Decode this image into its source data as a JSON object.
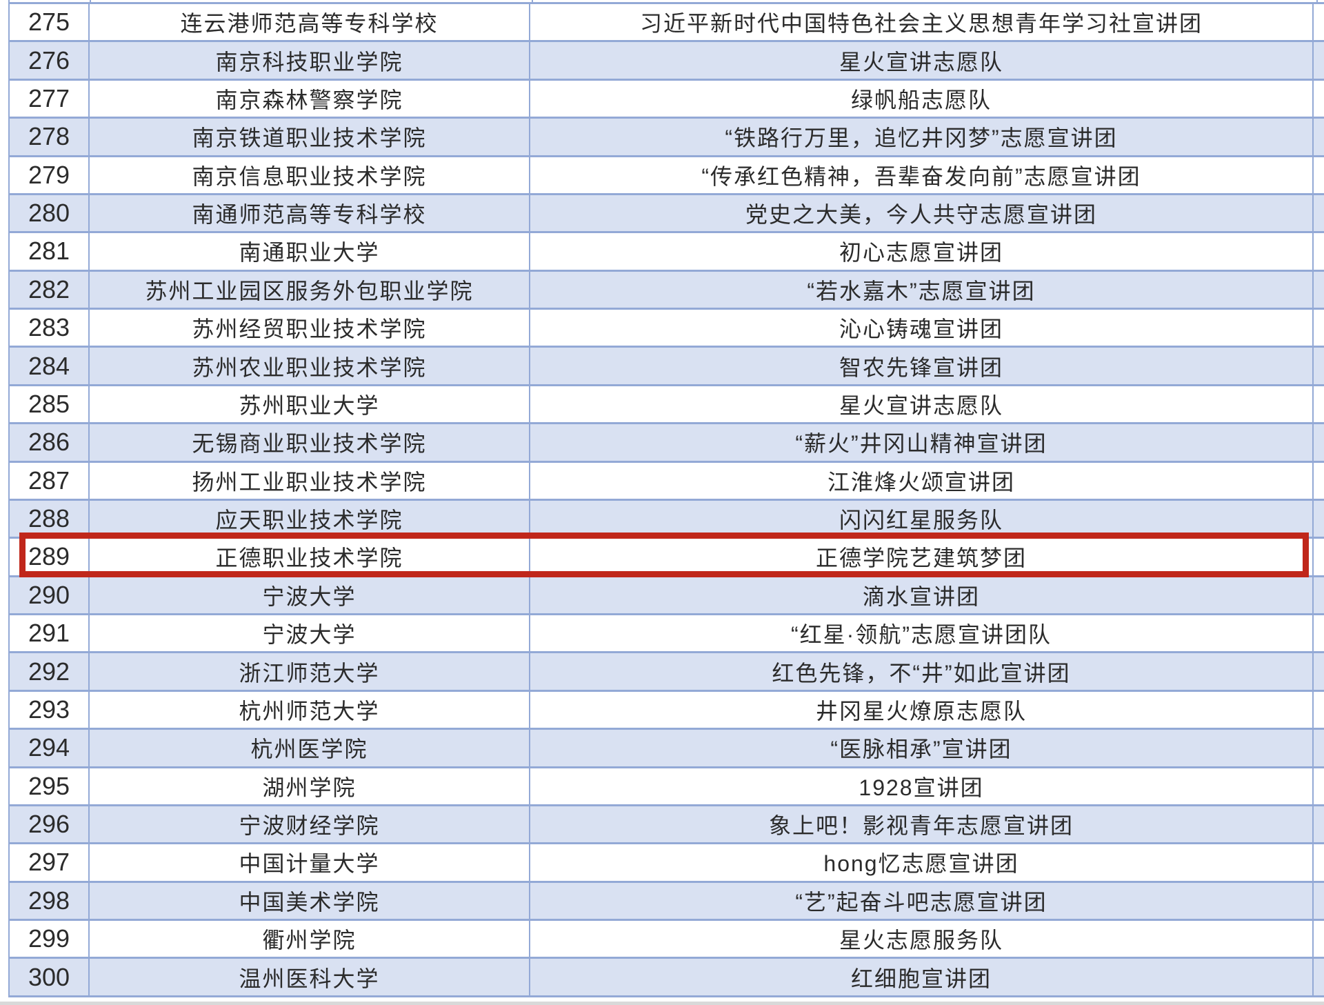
{
  "table": {
    "highlight": {
      "row_no": "289"
    },
    "colors": {
      "row_even_fill": "#d9e1f2",
      "row_odd_fill": "#ffffff",
      "border": "#93a9d6",
      "highlight_border": "#c0271b",
      "text": "#2b2b2b"
    },
    "rows": [
      {
        "no": "275",
        "school": "连云港师范高等专科学校",
        "team": "习近平新时代中国特色社会主义思想青年学习社宣讲团"
      },
      {
        "no": "276",
        "school": "南京科技职业学院",
        "team": "星火宣讲志愿队"
      },
      {
        "no": "277",
        "school": "南京森林警察学院",
        "team": "绿帆船志愿队"
      },
      {
        "no": "278",
        "school": "南京铁道职业技术学院",
        "team": "“铁路行万里，追忆井冈梦”志愿宣讲团"
      },
      {
        "no": "279",
        "school": "南京信息职业技术学院",
        "team": "“传承红色精神，吾辈奋发向前”志愿宣讲团"
      },
      {
        "no": "280",
        "school": "南通师范高等专科学校",
        "team": "党史之大美，今人共守志愿宣讲团"
      },
      {
        "no": "281",
        "school": "南通职业大学",
        "team": "初心志愿宣讲团"
      },
      {
        "no": "282",
        "school": "苏州工业园区服务外包职业学院",
        "team": "“若水嘉木”志愿宣讲团"
      },
      {
        "no": "283",
        "school": "苏州经贸职业技术学院",
        "team": "沁心铸魂宣讲团"
      },
      {
        "no": "284",
        "school": "苏州农业职业技术学院",
        "team": "智农先锋宣讲团"
      },
      {
        "no": "285",
        "school": "苏州职业大学",
        "team": "星火宣讲志愿队"
      },
      {
        "no": "286",
        "school": "无锡商业职业技术学院",
        "team": "“薪火”井冈山精神宣讲团"
      },
      {
        "no": "287",
        "school": "扬州工业职业技术学院",
        "team": "江淮烽火颂宣讲团"
      },
      {
        "no": "288",
        "school": "应天职业技术学院",
        "team": "闪闪红星服务队"
      },
      {
        "no": "289",
        "school": "正德职业技术学院",
        "team": "正德学院艺建筑梦团"
      },
      {
        "no": "290",
        "school": "宁波大学",
        "team": "滴水宣讲团"
      },
      {
        "no": "291",
        "school": "宁波大学",
        "team": "“红星·领航”志愿宣讲团队"
      },
      {
        "no": "292",
        "school": "浙江师范大学",
        "team": "红色先锋，不“井”如此宣讲团"
      },
      {
        "no": "293",
        "school": "杭州师范大学",
        "team": "井冈星火燎原志愿队"
      },
      {
        "no": "294",
        "school": "杭州医学院",
        "team": "“医脉相承”宣讲团"
      },
      {
        "no": "295",
        "school": "湖州学院",
        "team": "1928宣讲团"
      },
      {
        "no": "296",
        "school": "宁波财经学院",
        "team": "象上吧！影视青年志愿宣讲团"
      },
      {
        "no": "297",
        "school": "中国计量大学",
        "team": "hong忆志愿宣讲团"
      },
      {
        "no": "298",
        "school": "中国美术学院",
        "team": "“艺”起奋斗吧志愿宣讲团"
      },
      {
        "no": "299",
        "school": "衢州学院",
        "team": "星火志愿服务队"
      },
      {
        "no": "300",
        "school": "温州医科大学",
        "team": "红细胞宣讲团"
      }
    ]
  }
}
